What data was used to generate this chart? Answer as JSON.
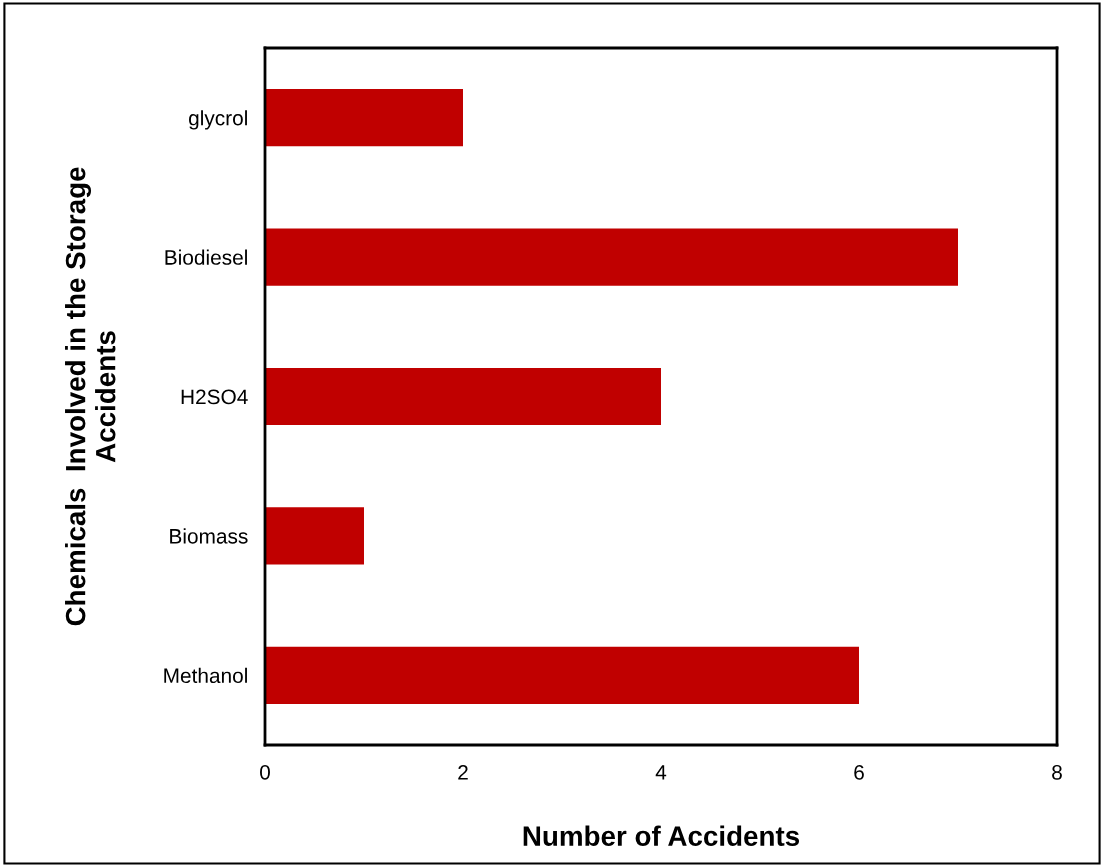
{
  "chart_data": {
    "type": "bar",
    "orientation": "horizontal",
    "categories": [
      "glycrol",
      "Biodiesel",
      "H2SO4",
      "Biomass",
      "Methanol"
    ],
    "values": [
      2,
      7,
      4,
      1,
      6
    ],
    "color": "#c00000",
    "xlim": [
      0,
      8
    ],
    "xticks": [
      0,
      2,
      4,
      6,
      8
    ],
    "xlabel": "Number of Accidents",
    "ylabel": "Chemicals  Involved in the Storage\nAccidents",
    "grid": false,
    "legend": false
  }
}
